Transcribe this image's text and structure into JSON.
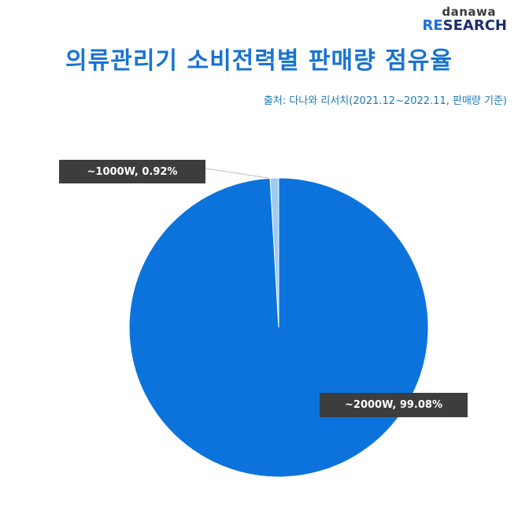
{
  "logo": {
    "top": "danawa",
    "bottom_re": "RE",
    "bottom_search": "SEARCH"
  },
  "title": "의류관리기 소비전력별 판매량 점유율",
  "source": "출처: 다나와 리서치(2021.12~2022.11, 판매량 기준)",
  "chart_data": {
    "type": "pie",
    "title": "의류관리기 소비전력별 판매량 점유율",
    "slices": [
      {
        "label": "~1000W",
        "value": 0.92,
        "display": "~1000W,  0.92%",
        "color": "#9ecbf0"
      },
      {
        "label": "~2000W",
        "value": 99.08,
        "display": "~2000W,  99.08%",
        "color": "#0c73dc"
      }
    ],
    "start": "12 o'clock",
    "direction": "counterclockwise",
    "legend": "none"
  }
}
